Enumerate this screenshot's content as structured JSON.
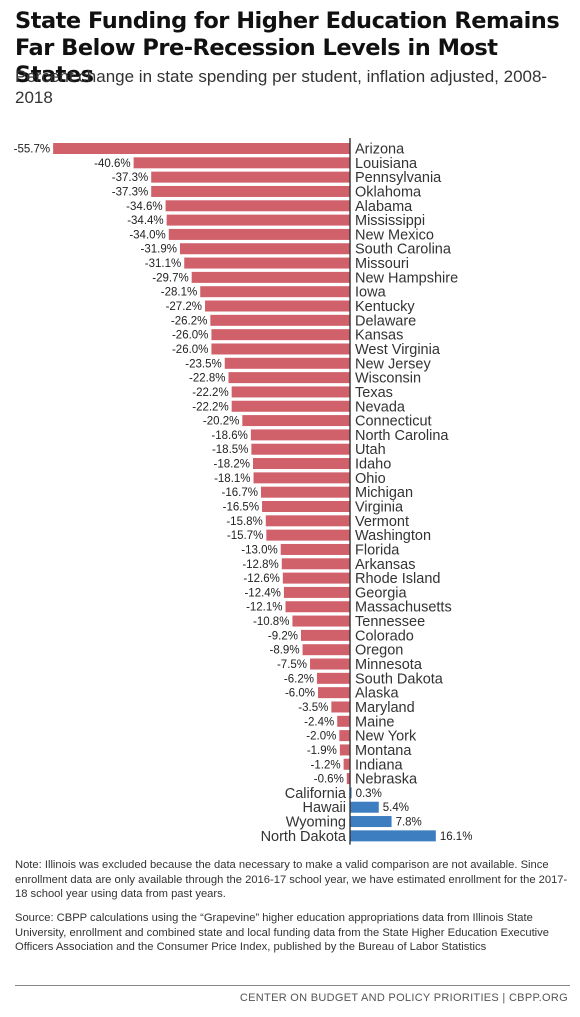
{
  "header": {
    "title": "State Funding for Higher Education Remains Far Below Pre-Recession Levels in Most States",
    "subtitle": "Percent change in state spending per student, inflation adjusted, 2008-2018"
  },
  "colors": {
    "negative": "#d0616b",
    "positive": "#3d7ec0",
    "axis": "#333333"
  },
  "chart_data": {
    "type": "bar",
    "orientation": "horizontal",
    "unit": "%",
    "xlim": [
      -55.7,
      16.1
    ],
    "grid": false,
    "legend": "none",
    "categories": [
      "Arizona",
      "Louisiana",
      "Pennsylvania",
      "Oklahoma",
      "Alabama",
      "Mississippi",
      "New Mexico",
      "South Carolina",
      "Missouri",
      "New Hampshire",
      "Iowa",
      "Kentucky",
      "Delaware",
      "Kansas",
      "West Virginia",
      "New Jersey",
      "Wisconsin",
      "Texas",
      "Nevada",
      "Connecticut",
      "North Carolina",
      "Utah",
      "Idaho",
      "Ohio",
      "Michigan",
      "Virginia",
      "Vermont",
      "Washington",
      "Florida",
      "Arkansas",
      "Rhode Island",
      "Georgia",
      "Massachusetts",
      "Tennessee",
      "Colorado",
      "Oregon",
      "Minnesota",
      "South Dakota",
      "Alaska",
      "Maryland",
      "Maine",
      "New York",
      "Montana",
      "Indiana",
      "Nebraska",
      "California",
      "Hawaii",
      "Wyoming",
      "North Dakota"
    ],
    "values": [
      -55.7,
      -40.6,
      -37.3,
      -37.3,
      -34.6,
      -34.4,
      -34.0,
      -31.9,
      -31.1,
      -29.7,
      -28.1,
      -27.2,
      -26.2,
      -26.0,
      -26.0,
      -23.5,
      -22.8,
      -22.2,
      -22.2,
      -20.2,
      -18.6,
      -18.5,
      -18.2,
      -18.1,
      -16.7,
      -16.5,
      -15.8,
      -15.7,
      -13.0,
      -12.8,
      -12.6,
      -12.4,
      -12.1,
      -10.8,
      -9.2,
      -8.9,
      -7.5,
      -6.2,
      -6.0,
      -3.5,
      -2.4,
      -2.0,
      -1.9,
      -1.2,
      -0.6,
      0.3,
      5.4,
      7.8,
      16.1
    ],
    "labels": [
      "-55.7%",
      "-40.6%",
      "-37.3%",
      "-37.3%",
      "-34.6%",
      "-34.4%",
      "-34.0%",
      "-31.9%",
      "-31.1%",
      "-29.7%",
      "-28.1%",
      "-27.2%",
      "-26.2%",
      "-26.0%",
      "-26.0%",
      "-23.5%",
      "-22.8%",
      "-22.2%",
      "-22.2%",
      "-20.2%",
      "-18.6%",
      "-18.5%",
      "-18.2%",
      "-18.1%",
      "-16.7%",
      "-16.5%",
      "-15.8%",
      "-15.7%",
      "-13.0%",
      "-12.8%",
      "-12.6%",
      "-12.4%",
      "-12.1%",
      "-10.8%",
      "-9.2%",
      "-8.9%",
      "-7.5%",
      "-6.2%",
      "-6.0%",
      "-3.5%",
      "-2.4%",
      "-2.0%",
      "-1.9%",
      "-1.2%",
      "-0.6%",
      "0.3%",
      "5.4%",
      "7.8%",
      "16.1%"
    ]
  },
  "footnotes": {
    "note": "Note: Illinois was excluded because the data necessary to make a valid comparison are not available. Since enrollment data are only available through the 2016-17 school year, we have estimated enrollment for the 2017-18 school year using data from past years.",
    "source": "Source: CBPP calculations using the “Grapevine” higher education appropriations data from Illinois State University, enrollment and combined state and local funding data from the State Higher Education Executive Officers Association and the Consumer Price Index, published by the Bureau of Labor Statistics"
  },
  "footer": {
    "credit": "CENTER ON BUDGET AND POLICY PRIORITIES | CBPP.ORG"
  }
}
